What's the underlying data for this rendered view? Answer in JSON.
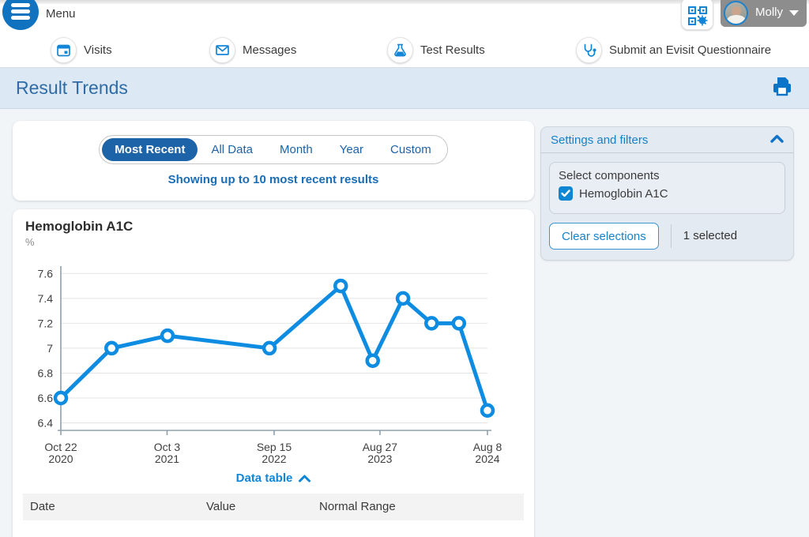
{
  "header": {
    "menu_label": "Menu",
    "user_name": "Molly"
  },
  "nav": {
    "items": [
      {
        "label": "Visits",
        "icon": "calendar-icon"
      },
      {
        "label": "Messages",
        "icon": "envelope-icon"
      },
      {
        "label": "Test Results",
        "icon": "flask-icon"
      },
      {
        "label": "Submit an Evisit Questionnaire",
        "icon": "stethoscope-icon"
      }
    ]
  },
  "page": {
    "title": "Result Trends"
  },
  "range_tabs": {
    "options": [
      "Most Recent",
      "All Data",
      "Month",
      "Year",
      "Custom"
    ],
    "selected": "Most Recent",
    "caption": "Showing up to 10 most recent results"
  },
  "result_card": {
    "title": "Hemoglobin A1C",
    "unit": "%",
    "data_table_label": "Data table",
    "table_headers": [
      "Date",
      "Value",
      "Normal Range"
    ]
  },
  "settings_panel": {
    "title": "Settings and filters",
    "select_label": "Select components",
    "components": [
      {
        "label": "Hemoglobin A1C",
        "checked": true
      }
    ],
    "clear_button_label": "Clear selections",
    "selected_count_label": "1 selected"
  },
  "colors": {
    "line_blue": "#0d8ce2",
    "deep_blue": "#1d63a8",
    "link_blue": "#1781c8",
    "title_blue": "#2d6ca8",
    "grid_gray": "#e4e4e4",
    "axis_gray": "#90a0ab"
  },
  "chart_data": {
    "type": "line",
    "title": "Hemoglobin A1C",
    "ylabel": "%",
    "ylim": [
      6.34,
      7.64
    ],
    "grid": true,
    "legend": false,
    "yticks": [
      "7.6",
      "7.4",
      "7.2",
      "7",
      "6.8",
      "6.6",
      "6.4"
    ],
    "points": [
      {
        "x_frac": 0.0,
        "value": 6.6
      },
      {
        "x_frac": 0.119,
        "value": 7.0
      },
      {
        "x_frac": 0.25,
        "value": 7.1
      },
      {
        "x_frac": 0.489,
        "value": 7.0
      },
      {
        "x_frac": 0.656,
        "value": 7.5
      },
      {
        "x_frac": 0.731,
        "value": 6.9
      },
      {
        "x_frac": 0.802,
        "value": 7.4
      },
      {
        "x_frac": 0.869,
        "value": 7.2
      },
      {
        "x_frac": 0.933,
        "value": 7.2
      },
      {
        "x_frac": 1.0,
        "value": 6.5
      }
    ],
    "x_ticks": [
      {
        "x_frac": 0.0,
        "label": [
          "Oct 22",
          "2020"
        ]
      },
      {
        "x_frac": 0.249,
        "label": [
          "Oct 3",
          "2021"
        ]
      },
      {
        "x_frac": 0.5,
        "label": [
          "Sep 15",
          "2022"
        ]
      },
      {
        "x_frac": 0.748,
        "label": [
          "Aug 27",
          "2023"
        ]
      },
      {
        "x_frac": 1.0,
        "label": [
          "Aug 8",
          "2024"
        ]
      }
    ]
  }
}
